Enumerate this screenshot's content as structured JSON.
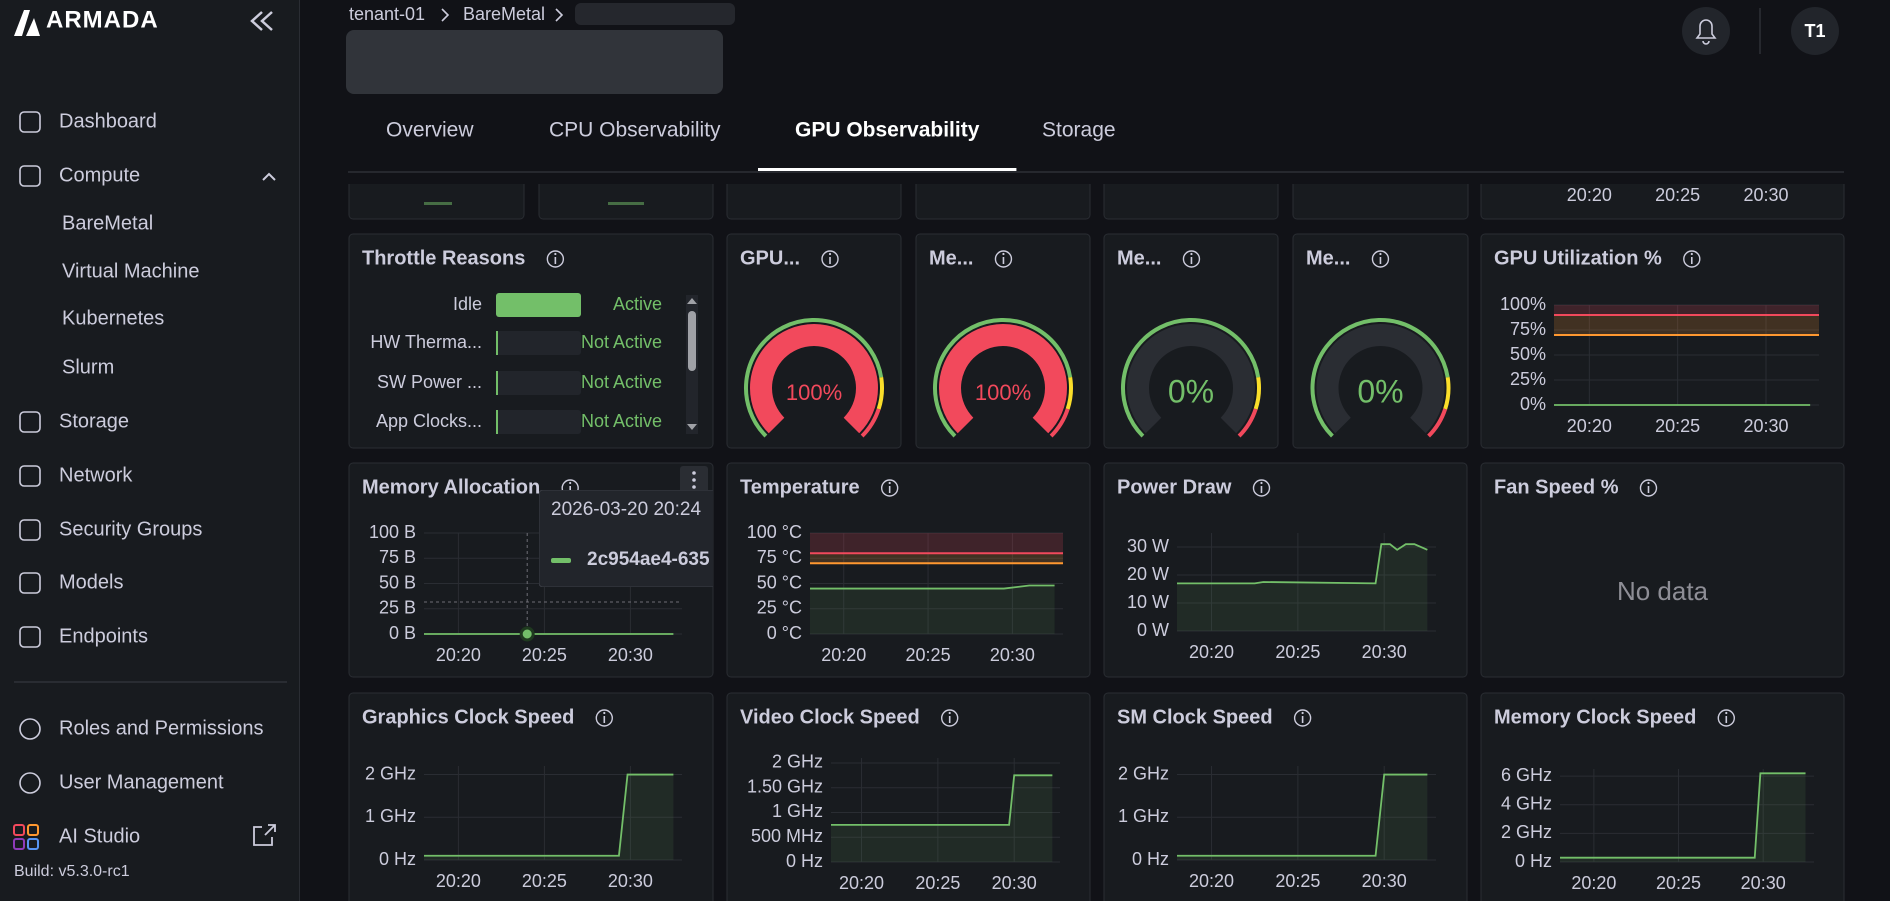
{
  "brand": "ARMADA",
  "nav": [
    "Dashboard",
    "Compute",
    "BareMetal",
    "Virtual Machine",
    "Kubernetes",
    "Slurm",
    "Storage",
    "Network",
    "Security Groups",
    "Models",
    "Endpoints"
  ],
  "nav_bottom": [
    "Roles and Permissions",
    "User Management",
    "AI Studio"
  ],
  "build": "Build: v5.3.0-rc1",
  "breadcrumb": [
    "tenant-01",
    "BareMetal"
  ],
  "avatar": "T1",
  "tabs": [
    "Overview",
    "CPU Observability",
    "GPU Observability",
    "Storage"
  ],
  "active_tab": "GPU Observability",
  "top_row": {
    "xticks": [
      "20:20",
      "20:25",
      "20:30"
    ]
  },
  "throttle": {
    "title": "Throttle Reasons",
    "rows": [
      {
        "name": "Idle",
        "status": "Active"
      },
      {
        "name": "HW Therma...",
        "status": "Not Active"
      },
      {
        "name": "SW Power ...",
        "status": "Not Active"
      },
      {
        "name": "App Clocks...",
        "status": "Not Active"
      }
    ]
  },
  "gauge_range": [
    0,
    100
  ],
  "gauge_steps": [
    {
      "value": 0,
      "color": "#73bf69"
    },
    {
      "value": 80,
      "color": "#fade2a"
    },
    {
      "value": 90,
      "color": "#f2495c"
    }
  ],
  "gauges": [
    {
      "title": "GPU...",
      "value": 100,
      "label": "100%"
    },
    {
      "title": "Me...",
      "value": 100,
      "label": "100%"
    },
    {
      "title": "Me...",
      "value": 0,
      "label": "0%"
    },
    {
      "title": "Me...",
      "value": 0,
      "label": "0%"
    }
  ],
  "xlim": [
    "20:18",
    "20:33"
  ],
  "xticks": [
    "20:20",
    "20:25",
    "20:30"
  ],
  "charts": [
    {
      "type": "line",
      "title": "GPU Utilization %",
      "ylim": [
        0,
        100
      ],
      "yticks": [
        {
          "value": 0,
          "label": "0%"
        },
        {
          "value": 25,
          "label": "25%"
        },
        {
          "value": 50,
          "label": "50%"
        },
        {
          "value": 75,
          "label": "75%"
        },
        {
          "value": 100,
          "label": "100%"
        }
      ],
      "thresholds": [
        {
          "value": 70,
          "color": "#ff9830"
        },
        {
          "value": 90,
          "color": "#f2495c"
        }
      ],
      "x": [
        "20:18",
        "20:32:30"
      ],
      "values": [
        0,
        0
      ],
      "color": "#73bf69",
      "fill": false
    },
    {
      "type": "line",
      "title": "Memory Allocation",
      "ylim": [
        0,
        100
      ],
      "yticks": [
        {
          "value": 0,
          "label": "0 B"
        },
        {
          "value": 25,
          "label": "25 B"
        },
        {
          "value": 50,
          "label": "50 B"
        },
        {
          "value": 75,
          "label": "75 B"
        },
        {
          "value": 100,
          "label": "100 B"
        }
      ],
      "thresholds": [],
      "x": [
        "20:18",
        "20:32:30"
      ],
      "values": [
        0,
        0
      ],
      "color": "#73bf69",
      "fill": false,
      "hover": {
        "x": "20:24",
        "value": 0,
        "label": "2026-03-20 20:24",
        "series": "2c954ae4-635"
      }
    },
    {
      "type": "line",
      "title": "Temperature",
      "ylim": [
        0,
        100
      ],
      "yticks": [
        {
          "value": 0,
          "label": "0 °C"
        },
        {
          "value": 25,
          "label": "25 °C"
        },
        {
          "value": 50,
          "label": "50 °C"
        },
        {
          "value": 75,
          "label": "75 °C"
        },
        {
          "value": 100,
          "label": "100 °C"
        }
      ],
      "thresholds": [
        {
          "value": 70,
          "color": "#ff9830"
        },
        {
          "value": 80,
          "color": "#f2495c"
        }
      ],
      "x": [
        "20:18",
        "20:29:30",
        "20:31",
        "20:32:30"
      ],
      "values": [
        45,
        45,
        48,
        48
      ],
      "color": "#73bf69",
      "fill": true
    },
    {
      "type": "line",
      "title": "Power Draw",
      "ylim": [
        0,
        35
      ],
      "yticks": [
        {
          "value": 0,
          "label": "0 W"
        },
        {
          "value": 10,
          "label": "10 W"
        },
        {
          "value": 20,
          "label": "20 W"
        },
        {
          "value": 30,
          "label": "30 W"
        }
      ],
      "thresholds": [],
      "x": [
        "20:18",
        "20:22:30",
        "20:23",
        "20:29:30",
        "20:29:50",
        "20:30:20",
        "20:30:45",
        "20:31:15",
        "20:31:45",
        "20:32:30"
      ],
      "values": [
        17,
        17,
        17.5,
        17,
        31,
        31,
        29,
        31,
        31,
        29
      ],
      "color": "#73bf69",
      "fill": true
    },
    {
      "type": "nodata",
      "title": "Fan Speed %",
      "message": "No data"
    },
    {
      "type": "line",
      "title": "Graphics Clock Speed",
      "ylim": [
        0,
        2200000000
      ],
      "yticks": [
        {
          "value": 0,
          "label": "0 Hz"
        },
        {
          "value": 1000000000,
          "label": "1 GHz"
        },
        {
          "value": 2000000000,
          "label": "2 GHz"
        }
      ],
      "thresholds": [],
      "x": [
        "20:18",
        "20:29:20",
        "20:29:50",
        "20:32:30"
      ],
      "values": [
        100000000,
        100000000,
        2000000000,
        2000000000
      ],
      "color": "#73bf69",
      "fill": true
    },
    {
      "type": "line",
      "title": "Video Clock Speed",
      "ylim": [
        0,
        2100000000
      ],
      "yticks": [
        {
          "value": 0,
          "label": "0 Hz"
        },
        {
          "value": 500000000,
          "label": "500 MHz"
        },
        {
          "value": 1000000000,
          "label": "1 GHz"
        },
        {
          "value": 1500000000,
          "label": "1.50 GHz"
        },
        {
          "value": 2000000000,
          "label": "2 GHz"
        }
      ],
      "thresholds": [],
      "x": [
        "20:18",
        "20:29:40",
        "20:30",
        "20:32:30"
      ],
      "values": [
        750000000,
        750000000,
        1750000000,
        1750000000
      ],
      "color": "#73bf69",
      "fill": true
    },
    {
      "type": "line",
      "title": "SM Clock Speed",
      "ylim": [
        0,
        2200000000
      ],
      "yticks": [
        {
          "value": 0,
          "label": "0 Hz"
        },
        {
          "value": 1000000000,
          "label": "1 GHz"
        },
        {
          "value": 2000000000,
          "label": "2 GHz"
        }
      ],
      "thresholds": [],
      "x": [
        "20:18",
        "20:29:30",
        "20:30",
        "20:32:30"
      ],
      "values": [
        100000000,
        100000000,
        2000000000,
        2000000000
      ],
      "color": "#73bf69",
      "fill": true
    },
    {
      "type": "line",
      "title": "Memory Clock Speed",
      "ylim": [
        0,
        6500000000
      ],
      "yticks": [
        {
          "value": 0,
          "label": "0 Hz"
        },
        {
          "value": 2000000000,
          "label": "2 GHz"
        },
        {
          "value": 4000000000,
          "label": "4 GHz"
        },
        {
          "value": 6000000000,
          "label": "6 GHz"
        }
      ],
      "thresholds": [],
      "x": [
        "20:18",
        "20:29:30",
        "20:29:50",
        "20:32:30"
      ],
      "values": [
        300000000,
        300000000,
        6200000000,
        6200000000
      ],
      "color": "#73bf69",
      "fill": true
    }
  ]
}
